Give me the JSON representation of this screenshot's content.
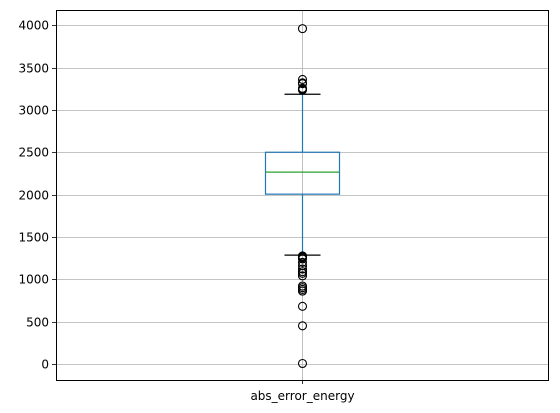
{
  "chart_data": {
    "type": "box",
    "title": "",
    "xlabel": "",
    "ylabel": "",
    "categories": [
      "abs_error_energy"
    ],
    "ylim": [
      -190,
      4180
    ],
    "yticks": [
      0,
      500,
      1000,
      1500,
      2000,
      2500,
      3000,
      3500,
      4000
    ],
    "grid": true,
    "boxes": [
      {
        "name": "abs_error_energy",
        "whisker_low": 1285,
        "q1": 2005,
        "median": 2265,
        "q3": 2500,
        "whisker_high": 3185,
        "outliers": [
          3960,
          3360,
          3320,
          3310,
          3255,
          3245,
          3235,
          1275,
          1265,
          1255,
          1240,
          1200,
          1160,
          1120,
          1090,
          1070,
          1040,
          920,
          900,
          880,
          860,
          680,
          450,
          5
        ]
      }
    ],
    "colors": {
      "box": "#1f77b4",
      "whisker": "#1f77b4",
      "cap": "#000000",
      "median": "#2ca02c",
      "flier": "#000000",
      "grid": "#b0b0b0"
    }
  }
}
